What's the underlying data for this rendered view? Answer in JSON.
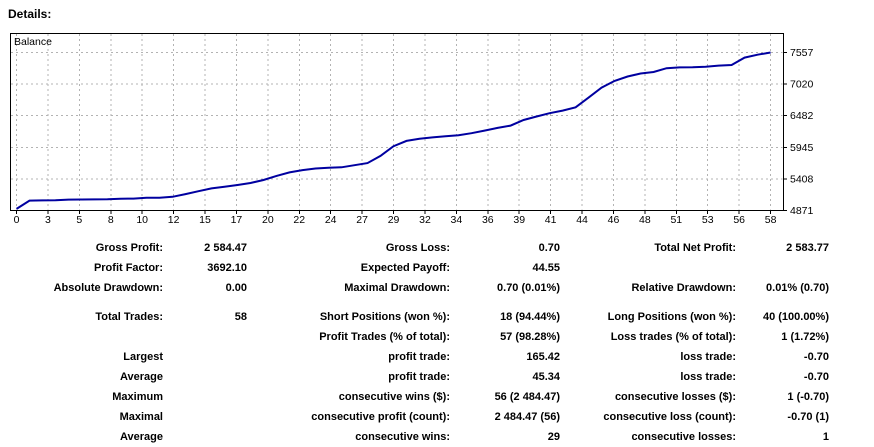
{
  "heading": "Details:",
  "chart": {
    "series_label": "Balance",
    "line_color": "#0000A0",
    "grid_color": "#b3b3b3",
    "border_color": "#000000",
    "y_labels": [
      "7557",
      "7020",
      "6482",
      "5945",
      "5408",
      "4871"
    ],
    "x_labels": [
      "0",
      "3",
      "5",
      "8",
      "10",
      "12",
      "15",
      "17",
      "20",
      "22",
      "24",
      "27",
      "29",
      "32",
      "34",
      "36",
      "39",
      "41",
      "44",
      "46",
      "48",
      "51",
      "53",
      "56",
      "58"
    ]
  },
  "chart_data": {
    "type": "line",
    "title": "Balance",
    "legend": [
      "Balance"
    ],
    "x_range": [
      0,
      58
    ],
    "ylim": [
      4871,
      7557
    ],
    "y_ticks": [
      7557,
      7020,
      6482,
      5945,
      5408,
      4871
    ],
    "x_tick_labels": [
      0,
      3,
      5,
      8,
      10,
      12,
      15,
      17,
      20,
      22,
      24,
      27,
      29,
      32,
      34,
      36,
      39,
      41,
      44,
      46,
      48,
      51,
      53,
      56,
      58
    ],
    "grid": true,
    "values": [
      4900,
      5040,
      5043,
      5046,
      5057,
      5059,
      5061,
      5063,
      5072,
      5075,
      5088,
      5090,
      5105,
      5150,
      5200,
      5248,
      5275,
      5305,
      5340,
      5390,
      5460,
      5520,
      5558,
      5585,
      5600,
      5606,
      5642,
      5678,
      5800,
      5965,
      6055,
      6090,
      6115,
      6135,
      6152,
      6185,
      6230,
      6275,
      6315,
      6410,
      6470,
      6525,
      6570,
      6625,
      6790,
      6960,
      7075,
      7150,
      7200,
      7225,
      7290,
      7303,
      7308,
      7316,
      7335,
      7345,
      7470,
      7520,
      7557
    ]
  },
  "stats": {
    "rows": [
      {
        "cells": [
          "Gross Profit:",
          "2 584.47",
          "Gross Loss:",
          "0.70",
          "Total Net Profit:",
          "2 583.77"
        ],
        "gap_after": false
      },
      {
        "cells": [
          "Profit Factor:",
          "3692.10",
          "Expected Payoff:",
          "44.55",
          "",
          ""
        ],
        "gap_after": false
      },
      {
        "cells": [
          "Absolute Drawdown:",
          "0.00",
          "Maximal Drawdown:",
          "0.70 (0.01%)",
          "Relative Drawdown:",
          "0.01% (0.70)"
        ],
        "gap_after": true
      },
      {
        "cells": [
          "Total Trades:",
          "58",
          "Short Positions (won %):",
          "18 (94.44%)",
          "Long Positions (won %):",
          "40 (100.00%)"
        ],
        "gap_after": false
      },
      {
        "cells": [
          "",
          "",
          "Profit Trades (% of total):",
          "57 (98.28%)",
          "Loss trades (% of total):",
          "1 (1.72%)"
        ],
        "gap_after": false
      },
      {
        "cells": [
          "Largest",
          "",
          "profit trade:",
          "165.42",
          "loss trade:",
          "-0.70"
        ],
        "gap_after": false
      },
      {
        "cells": [
          "Average",
          "",
          "profit trade:",
          "45.34",
          "loss trade:",
          "-0.70"
        ],
        "gap_after": false
      },
      {
        "cells": [
          "Maximum",
          "",
          "consecutive wins ($):",
          "56 (2 484.47)",
          "consecutive losses ($):",
          "1 (-0.70)"
        ],
        "gap_after": false
      },
      {
        "cells": [
          "Maximal",
          "",
          "consecutive profit (count):",
          "2 484.47 (56)",
          "consecutive loss (count):",
          "-0.70 (1)"
        ],
        "gap_after": false
      },
      {
        "cells": [
          "Average",
          "",
          "consecutive wins:",
          "29",
          "consecutive losses:",
          "1"
        ],
        "gap_after": false
      }
    ]
  }
}
